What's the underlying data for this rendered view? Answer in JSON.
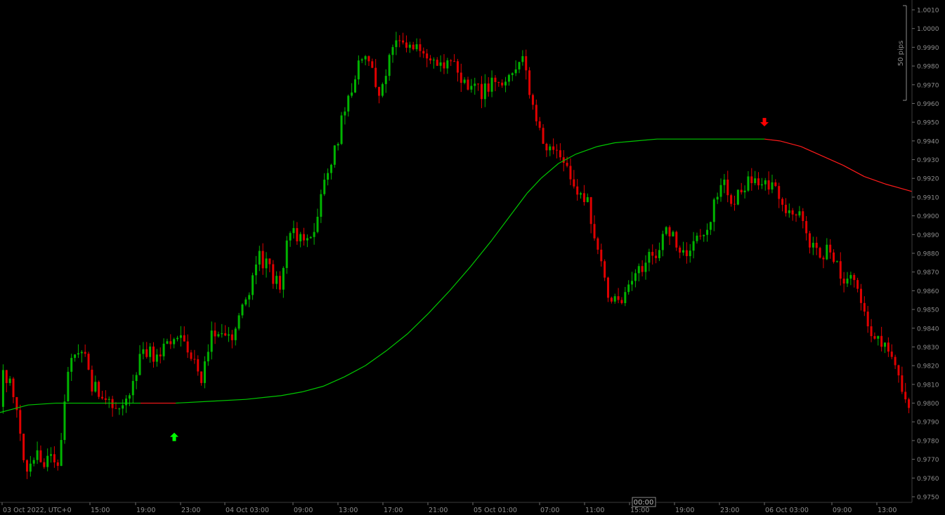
{
  "chart_data": {
    "type": "candlestick",
    "symbol_hint": "",
    "ylim": [
      0.9747,
      1.0013
    ],
    "y_ticks": [
      "1.0010",
      "1.0000",
      "0.9990",
      "0.9980",
      "0.9970",
      "0.9960",
      "0.9950",
      "0.9940",
      "0.9930",
      "0.9920",
      "0.9910",
      "0.9900",
      "0.9890",
      "0.9880",
      "0.9870",
      "0.9860",
      "0.9850",
      "0.9840",
      "0.9830",
      "0.9820",
      "0.9810",
      "0.9800",
      "0.9790",
      "0.9780",
      "0.9770",
      "0.9760",
      "0.9750"
    ],
    "x_ticks": [
      "03 Oct 2022, UTC+0",
      "15:00",
      "19:00",
      "23:00",
      "04 Oct 03:00",
      "09:00",
      "13:00",
      "17:00",
      "21:00",
      "05 Oct 01:00",
      "07:00",
      "11:00",
      "15:00",
      "19:00",
      "23:00",
      "06 Oct 03:00",
      "09:00",
      "13:00"
    ],
    "crosshair_time": "00:00",
    "scale_label": "50 pips",
    "colors": {
      "up": "#00b400",
      "down": "#e00000",
      "background": "#000000",
      "axis_text": "#8c8c8c",
      "ma_up": "#00c800",
      "ma_down": "#ff1a1a",
      "arrow_up": "#00ff00",
      "arrow_down": "#ff0000"
    },
    "price_path": [
      [
        0.9798,
        0.9815
      ],
      [
        0.9826,
        0.9806
      ],
      [
        0.979,
        0.9765
      ],
      [
        0.9782,
        0.9773
      ],
      [
        0.9762,
        0.9768
      ],
      [
        0.9775,
        0.977
      ],
      [
        0.981,
        0.982
      ],
      [
        0.9838,
        0.9832
      ],
      [
        0.9826,
        0.981
      ],
      [
        0.98,
        0.9806
      ],
      [
        0.9802,
        0.9797
      ],
      [
        0.98,
        0.9795
      ],
      [
        0.9808,
        0.9818
      ],
      [
        0.9822,
        0.9828
      ],
      [
        0.9824,
        0.9822
      ],
      [
        0.983,
        0.9834
      ],
      [
        0.983,
        0.9835
      ],
      [
        0.9824,
        0.9826
      ],
      [
        0.9818,
        0.9812
      ],
      [
        0.983,
        0.984
      ],
      [
        0.9838,
        0.9832
      ],
      [
        0.9842,
        0.9836
      ],
      [
        0.9846,
        0.9855
      ],
      [
        0.9865,
        0.988
      ],
      [
        0.9875,
        0.9872
      ],
      [
        0.9865,
        0.9862
      ],
      [
        0.9878,
        0.9892
      ],
      [
        0.9898,
        0.9888
      ],
      [
        0.9885,
        0.9888
      ],
      [
        0.9902,
        0.9915
      ],
      [
        0.9925,
        0.9935
      ],
      [
        0.995,
        0.9958
      ],
      [
        0.997,
        0.9978
      ],
      [
        0.9985,
        0.9982
      ],
      [
        0.9972,
        0.9965
      ],
      [
        0.9975,
        0.9985
      ],
      [
        0.9995,
        0.9998
      ],
      [
        0.9992,
        0.999
      ],
      [
        0.9986,
        0.9985
      ],
      [
        0.9983,
        0.9984
      ],
      [
        0.9981,
        0.9983
      ],
      [
        0.9987,
        0.998
      ],
      [
        0.9975,
        0.997
      ],
      [
        0.9968,
        0.9966
      ],
      [
        0.9972,
        0.9968
      ],
      [
        0.9965,
        0.9975
      ],
      [
        0.9978,
        0.997
      ],
      [
        0.9975,
        0.999
      ],
      [
        0.9965,
        0.9955
      ],
      [
        0.9942,
        0.9935
      ],
      [
        0.9948,
        0.994
      ],
      [
        0.993,
        0.9924
      ],
      [
        0.992,
        0.9914
      ],
      [
        0.9906,
        0.9905
      ],
      [
        0.9898,
        0.9878
      ],
      [
        0.9862,
        0.9852
      ],
      [
        0.9845,
        0.9855
      ],
      [
        0.9862,
        0.987
      ],
      [
        0.9868,
        0.9875
      ],
      [
        0.9872,
        0.988
      ],
      [
        0.9888,
        0.9893
      ],
      [
        0.9886,
        0.9885
      ],
      [
        0.9878,
        0.9882
      ],
      [
        0.9885,
        0.9888
      ],
      [
        0.9892,
        0.99
      ],
      [
        0.991,
        0.992
      ],
      [
        0.9915,
        0.9908
      ],
      [
        0.9912,
        0.9915
      ],
      [
        0.9918,
        0.9922
      ],
      [
        0.9915,
        0.9918
      ],
      [
        0.992,
        0.9915
      ],
      [
        0.991,
        0.9902
      ],
      [
        0.9895,
        0.99
      ],
      [
        0.9893,
        0.9885
      ],
      [
        0.9882,
        0.9878
      ],
      [
        0.9888,
        0.9882
      ],
      [
        0.9875,
        0.9862
      ],
      [
        0.9858,
        0.9866
      ],
      [
        0.9872,
        0.985
      ],
      [
        0.984,
        0.9832
      ],
      [
        0.9838,
        0.983
      ],
      [
        0.9828,
        0.9815
      ],
      [
        0.9808,
        0.9795
      ]
    ],
    "ma_path": [
      [
        0,
        0.9795
      ],
      [
        20,
        0.9797
      ],
      [
        40,
        0.9799
      ],
      [
        80,
        0.98
      ],
      [
        110,
        0.98
      ],
      [
        150,
        0.98
      ],
      [
        200,
        0.98
      ],
      [
        250,
        0.98
      ],
      [
        300,
        0.9801
      ],
      [
        350,
        0.9802
      ],
      [
        400,
        0.9804
      ],
      [
        430,
        0.9806
      ],
      [
        460,
        0.9809
      ],
      [
        490,
        0.9814
      ],
      [
        520,
        0.982
      ],
      [
        550,
        0.9828
      ],
      [
        580,
        0.9837
      ],
      [
        610,
        0.9848
      ],
      [
        640,
        0.986
      ],
      [
        670,
        0.9873
      ],
      [
        700,
        0.9887
      ],
      [
        730,
        0.9902
      ],
      [
        750,
        0.9912
      ],
      [
        770,
        0.992
      ],
      [
        795,
        0.9928
      ],
      [
        820,
        0.9933
      ],
      [
        850,
        0.9937
      ],
      [
        875,
        0.9939
      ],
      [
        905,
        0.994
      ],
      [
        935,
        0.9941
      ],
      [
        960,
        0.9941
      ],
      [
        985,
        0.9941
      ],
      [
        1010,
        0.9941
      ],
      [
        1035,
        0.9941
      ],
      [
        1060,
        0.9941
      ],
      [
        1088,
        0.9941
      ],
      [
        1110,
        0.994
      ],
      [
        1140,
        0.9937
      ],
      [
        1170,
        0.9932
      ],
      [
        1200,
        0.9927
      ],
      [
        1230,
        0.9921
      ],
      [
        1260,
        0.9917
      ],
      [
        1298,
        0.9913
      ]
    ],
    "ma_color_switch_x": 175,
    "ma_color_switch_back_x": 237,
    "ma_down_from_x": 1088,
    "signals": [
      {
        "type": "buy",
        "price": 0.9782
      },
      {
        "type": "sell",
        "price": 0.995
      }
    ]
  }
}
